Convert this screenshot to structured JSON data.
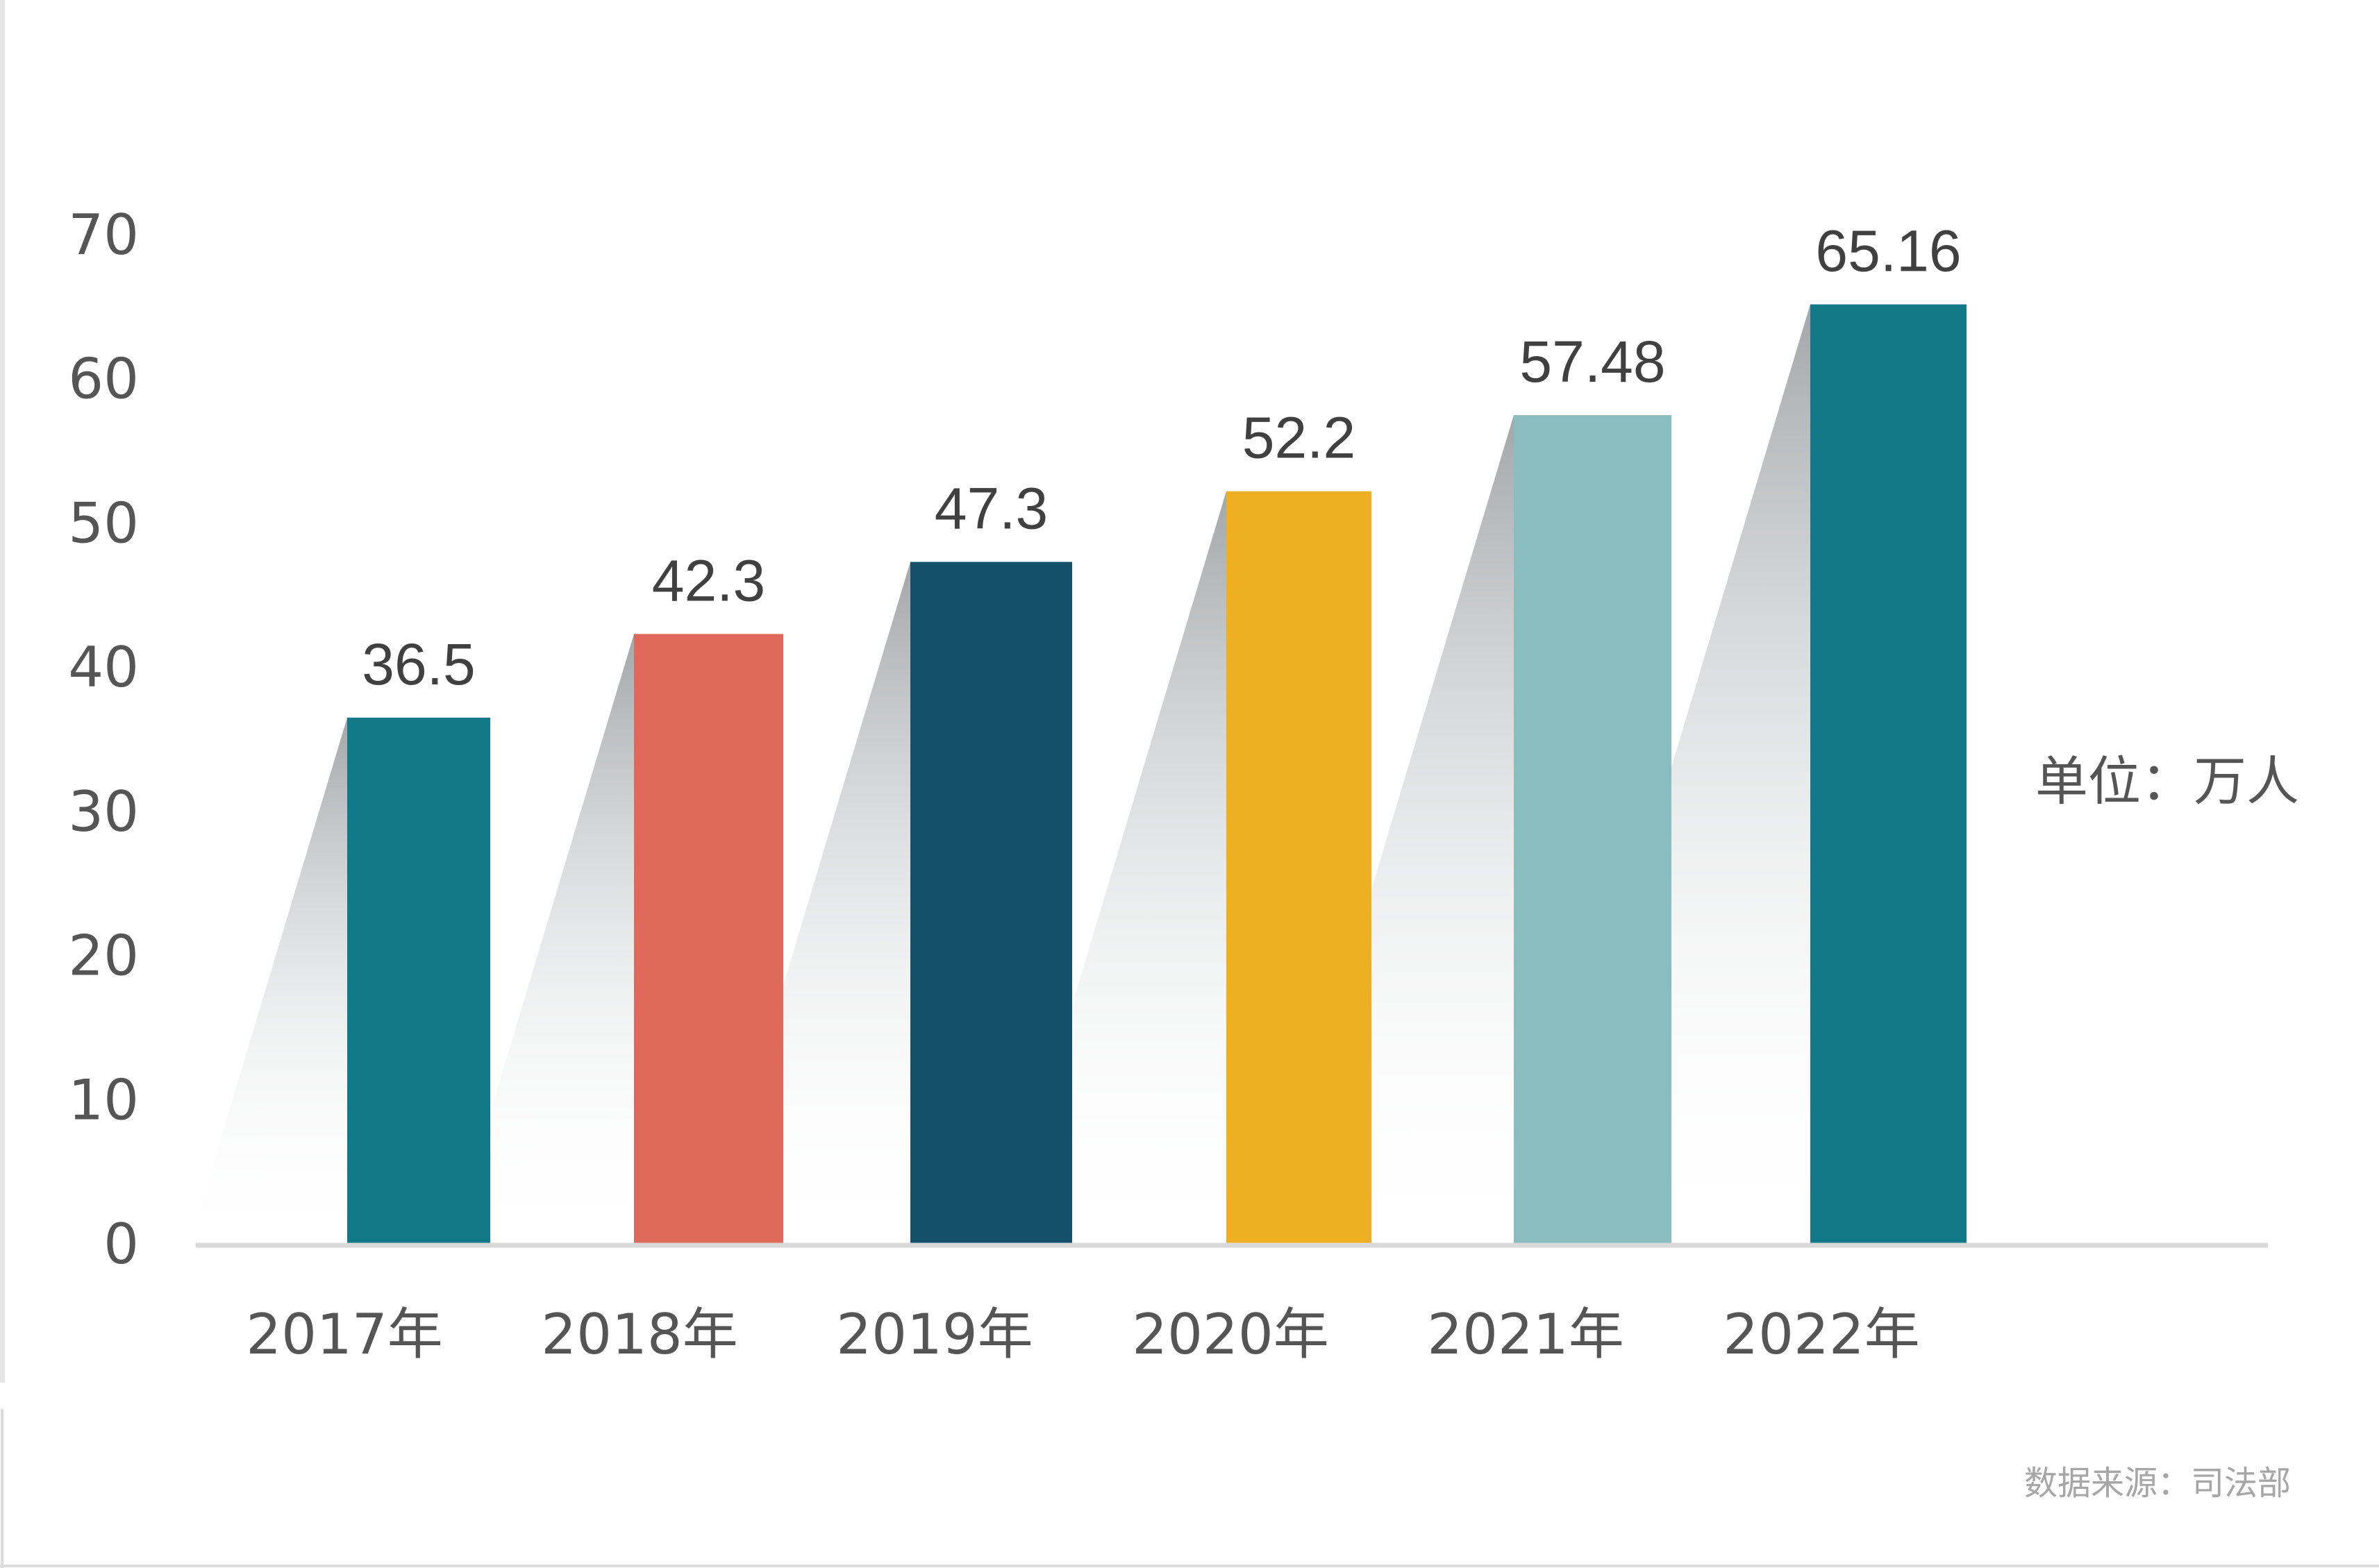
{
  "chart_data": {
    "type": "bar",
    "categories": [
      "2017年",
      "2018年",
      "2019年",
      "2020年",
      "2021年",
      "2022年"
    ],
    "values": [
      36.5,
      42.3,
      47.3,
      52.2,
      57.48,
      65.16
    ],
    "value_labels": [
      "36.5",
      "42.3",
      "47.3",
      "52.2",
      "57.48",
      "65.16"
    ],
    "colors": [
      "#137887",
      "#de695a",
      "#15506a",
      "#efaf23",
      "#8abdbf",
      "#137887"
    ],
    "ylim": [
      0,
      70
    ],
    "yticks": [
      0,
      10,
      20,
      30,
      40,
      50,
      60,
      70
    ],
    "grid": false,
    "unit": "单位：万人",
    "source": "数据来源：司法部"
  }
}
